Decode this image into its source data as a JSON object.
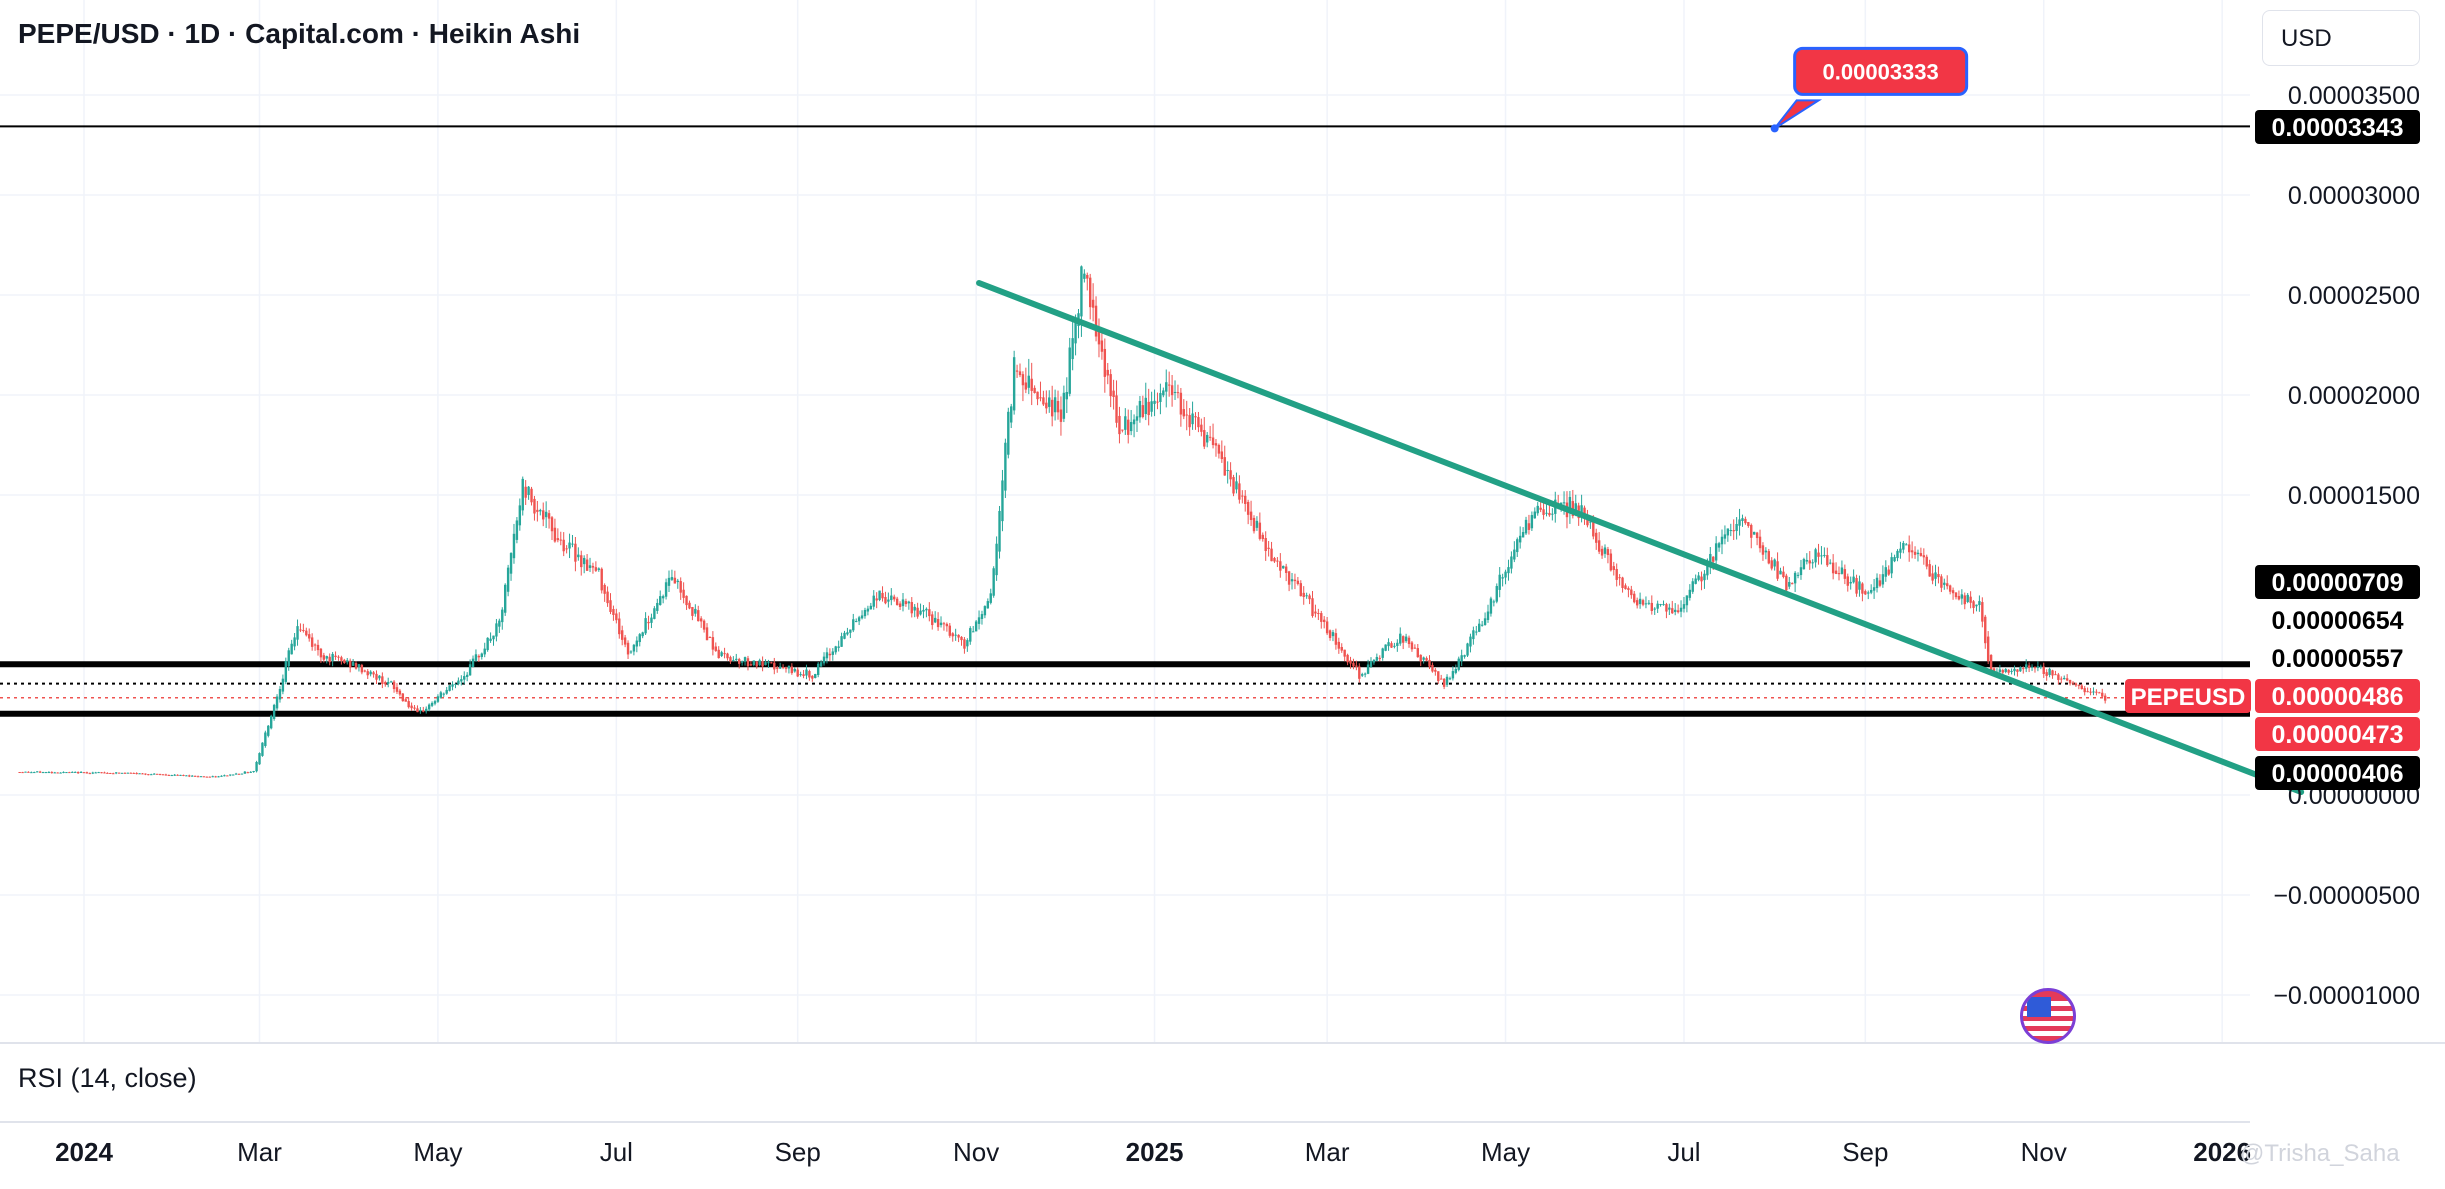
{
  "header": {
    "title": "PEPE/USD · 1D · Capital.com · Heikin Ashi",
    "currency_label": "USD"
  },
  "indicator": {
    "label": "RSI (14, close)"
  },
  "watermark": "@Trisha_Saha",
  "icons": {
    "flag": "us-flag-icon"
  },
  "colors": {
    "up": "#26a69a",
    "down": "#ef5350",
    "trendline": "#22a085",
    "level_line": "#000000",
    "price_tag": "#f23645",
    "callout": "#f23645",
    "callout_border": "#2962ff"
  },
  "chart_data": {
    "type": "candlestick",
    "title": "PEPE/USD · 1D · Capital.com · Heikin Ashi",
    "xlabel": "",
    "ylabel": "",
    "ylim": [
      -1.25e-05,
      3.75e-05
    ],
    "grid": true,
    "x_ticks": [
      {
        "label": "2024",
        "date": "2024-01-01",
        "bold": true
      },
      {
        "label": "Mar",
        "date": "2024-03-01"
      },
      {
        "label": "May",
        "date": "2024-05-01"
      },
      {
        "label": "Jul",
        "date": "2024-07-01"
      },
      {
        "label": "Sep",
        "date": "2024-09-01"
      },
      {
        "label": "Nov",
        "date": "2024-11-01"
      },
      {
        "label": "2025",
        "date": "2025-01-01",
        "bold": true
      },
      {
        "label": "Mar",
        "date": "2025-03-01"
      },
      {
        "label": "May",
        "date": "2025-05-01"
      },
      {
        "label": "Jul",
        "date": "2025-07-01"
      },
      {
        "label": "Sep",
        "date": "2025-09-01"
      },
      {
        "label": "Nov",
        "date": "2025-11-01"
      },
      {
        "label": "2026",
        "date": "2026-01-01",
        "bold": true
      }
    ],
    "y_ticks": [
      {
        "label": "0.00003500",
        "value": 3.5e-05
      },
      {
        "label": "0.00003000",
        "value": 3e-05
      },
      {
        "label": "0.00002500",
        "value": 2.5e-05
      },
      {
        "label": "0.00002000",
        "value": 2e-05
      },
      {
        "label": "0.00001500",
        "value": 1.5e-05
      },
      {
        "label": "0.00000000",
        "value": 0
      },
      {
        "label": "−0.00000500",
        "value": -5e-06
      },
      {
        "label": "−0.00001000",
        "value": -1e-05
      }
    ],
    "price_path": [
      {
        "date": "2023-12-10",
        "value": 1.15e-06
      },
      {
        "date": "2024-01-15",
        "value": 1.1e-06
      },
      {
        "date": "2024-02-15",
        "value": 9e-07
      },
      {
        "date": "2024-02-28",
        "value": 1.2e-06
      },
      {
        "date": "2024-03-06",
        "value": 4.5e-06
      },
      {
        "date": "2024-03-14",
        "value": 8.5e-06
      },
      {
        "date": "2024-03-22",
        "value": 7e-06
      },
      {
        "date": "2024-04-02",
        "value": 6.5e-06
      },
      {
        "date": "2024-04-15",
        "value": 5.5e-06
      },
      {
        "date": "2024-04-24",
        "value": 4e-06
      },
      {
        "date": "2024-05-10",
        "value": 6e-06
      },
      {
        "date": "2024-05-22",
        "value": 8.5e-06
      },
      {
        "date": "2024-05-30",
        "value": 1.55e-05
      },
      {
        "date": "2024-06-10",
        "value": 1.3e-05
      },
      {
        "date": "2024-06-25",
        "value": 1.1e-05
      },
      {
        "date": "2024-07-05",
        "value": 7e-06
      },
      {
        "date": "2024-07-20",
        "value": 1.1e-05
      },
      {
        "date": "2024-08-05",
        "value": 7e-06
      },
      {
        "date": "2024-08-20",
        "value": 6.5e-06
      },
      {
        "date": "2024-09-06",
        "value": 6e-06
      },
      {
        "date": "2024-09-28",
        "value": 1e-05
      },
      {
        "date": "2024-10-15",
        "value": 9e-06
      },
      {
        "date": "2024-10-28",
        "value": 7.5e-06
      },
      {
        "date": "2024-11-06",
        "value": 1e-05
      },
      {
        "date": "2024-11-14",
        "value": 2.15e-05
      },
      {
        "date": "2024-11-30",
        "value": 1.9e-05
      },
      {
        "date": "2024-12-08",
        "value": 2.65e-05
      },
      {
        "date": "2024-12-20",
        "value": 1.8e-05
      },
      {
        "date": "2025-01-06",
        "value": 2.05e-05
      },
      {
        "date": "2025-01-20",
        "value": 1.75e-05
      },
      {
        "date": "2025-02-10",
        "value": 1.2e-05
      },
      {
        "date": "2025-02-28",
        "value": 8.5e-06
      },
      {
        "date": "2025-03-12",
        "value": 6e-06
      },
      {
        "date": "2025-03-26",
        "value": 8e-06
      },
      {
        "date": "2025-04-10",
        "value": 5.5e-06
      },
      {
        "date": "2025-04-22",
        "value": 8.5e-06
      },
      {
        "date": "2025-05-10",
        "value": 1.4e-05
      },
      {
        "date": "2025-05-25",
        "value": 1.45e-05
      },
      {
        "date": "2025-06-12",
        "value": 1e-05
      },
      {
        "date": "2025-06-28",
        "value": 9e-06
      },
      {
        "date": "2025-07-20",
        "value": 1.4e-05
      },
      {
        "date": "2025-08-05",
        "value": 1.05e-05
      },
      {
        "date": "2025-08-15",
        "value": 1.2e-05
      },
      {
        "date": "2025-09-02",
        "value": 1e-05
      },
      {
        "date": "2025-09-15",
        "value": 1.25e-05
      },
      {
        "date": "2025-10-01",
        "value": 1e-05
      },
      {
        "date": "2025-10-10",
        "value": 9.5e-06
      },
      {
        "date": "2025-10-14",
        "value": 6e-06
      },
      {
        "date": "2025-10-28",
        "value": 6.5e-06
      },
      {
        "date": "2025-11-12",
        "value": 5.5e-06
      },
      {
        "date": "2025-11-22",
        "value": 4.86e-06
      }
    ],
    "trendline": {
      "start": {
        "date": "2024-11-02",
        "value": 2.56e-05
      },
      "end": {
        "date": "2026-01-28",
        "value": 1.5e-07
      }
    },
    "horizontal_levels": [
      {
        "value": 3.343e-05,
        "style": "solid-thin"
      },
      {
        "value": 6.54e-06,
        "style": "solid-thick"
      },
      {
        "value": 5.57e-06,
        "style": "dotted"
      },
      {
        "value": 4.86e-06,
        "style": "dotted-red"
      },
      {
        "value": 4.06e-06,
        "style": "solid-thick"
      }
    ],
    "price_labels": [
      {
        "text": "0.00003343",
        "value": 3.343e-05,
        "style": "black"
      },
      {
        "text": "0.00000709",
        "value": 7.09e-06,
        "style": "black"
      },
      {
        "text": "0.00000654",
        "value": 6.54e-06,
        "style": "white"
      },
      {
        "text": "0.00000557",
        "value": 5.57e-06,
        "style": "white"
      },
      {
        "text": "0.00000486",
        "value": 4.86e-06,
        "style": "red",
        "symbol": "PEPEUSD"
      },
      {
        "text": "0.00000473",
        "value": 4.73e-06,
        "style": "red-under"
      },
      {
        "text": "0.00000406",
        "value": 4.06e-06,
        "style": "black"
      }
    ],
    "annotation": {
      "text": "0.00003333",
      "date": "2025-08-01",
      "value": 3.333e-05
    },
    "last_price": 4.86e-06,
    "symbol": "PEPEUSD"
  }
}
